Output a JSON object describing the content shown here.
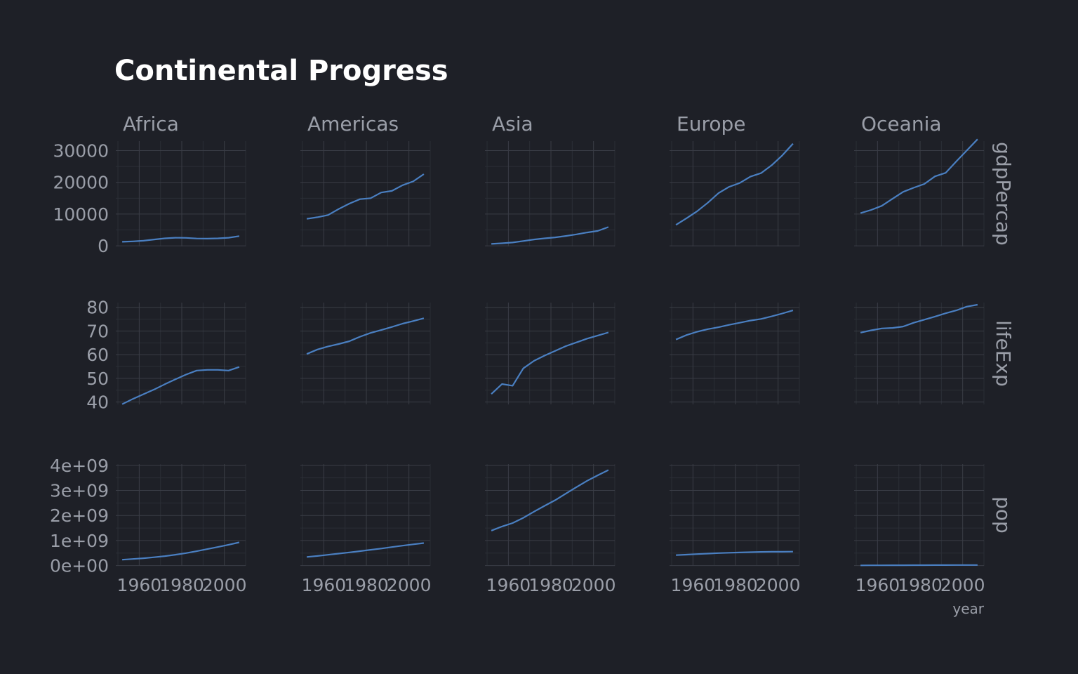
{
  "title": "Continental Progress",
  "colors": {
    "background": "#1e2027",
    "line": "#4a7fc1",
    "grid_major": "#3a3d46",
    "grid_minor": "#2b2e36",
    "text": "#9a9ea8",
    "title": "#ffffff"
  },
  "chart_data": {
    "type": "line",
    "facets": "grid",
    "xlabel": "year",
    "x": [
      1952,
      1957,
      1962,
      1967,
      1972,
      1977,
      1982,
      1987,
      1992,
      1997,
      2002,
      2007
    ],
    "xlim": [
      1949,
      2010
    ],
    "x_ticks": [
      1960,
      1980,
      2000
    ],
    "x_tick_labels": [
      "1960",
      "1980",
      "2000"
    ],
    "columns": [
      "Africa",
      "Americas",
      "Asia",
      "Europe",
      "Oceania"
    ],
    "rows": [
      {
        "name": "gdpPercap",
        "ylim": [
          -200,
          33000
        ],
        "y_ticks": [
          0,
          10000,
          20000,
          30000
        ],
        "y_tick_labels": [
          "0",
          "10000",
          "20000",
          "30000"
        ],
        "series": [
          {
            "column": "Africa",
            "values": [
              1250,
              1390,
              1600,
              2000,
              2350,
              2550,
              2500,
              2300,
              2250,
              2350,
              2550,
              3050
            ]
          },
          {
            "column": "Americas",
            "values": [
              8500,
              9000,
              9700,
              11600,
              13300,
              14700,
              15000,
              16800,
              17300,
              19100,
              20300,
              22600
            ]
          },
          {
            "column": "Asia",
            "values": [
              600,
              800,
              1050,
              1500,
              2000,
              2350,
              2650,
              3100,
              3600,
              4200,
              4700,
              5900
            ]
          },
          {
            "column": "Europe",
            "values": [
              6600,
              8700,
              10900,
              13600,
              16600,
              18600,
              19800,
              21800,
              22900,
              25400,
              28500,
              32200
            ]
          },
          {
            "column": "Oceania",
            "values": [
              10300,
              11300,
              12600,
              14800,
              17000,
              18300,
              19500,
              21900,
              23000,
              26600,
              30100,
              33600
            ]
          }
        ]
      },
      {
        "name": "lifeExp",
        "ylim": [
          39,
          82
        ],
        "y_ticks": [
          40,
          50,
          60,
          70,
          80
        ],
        "y_tick_labels": [
          "40",
          "50",
          "60",
          "70",
          "80"
        ],
        "series": [
          {
            "column": "Africa",
            "values": [
              39.1,
              41.3,
              43.3,
              45.3,
              47.5,
              49.6,
              51.6,
              53.3,
              53.6,
              53.6,
              53.3,
              54.8
            ]
          },
          {
            "column": "Americas",
            "values": [
              60.3,
              62.2,
              63.5,
              64.5,
              65.7,
              67.6,
              69.2,
              70.4,
              71.7,
              73.1,
              74.2,
              75.4
            ]
          },
          {
            "column": "Asia",
            "values": [
              43.4,
              47.6,
              46.9,
              54.2,
              57.4,
              59.6,
              61.6,
              63.6,
              65.2,
              66.8,
              68.1,
              69.4
            ]
          },
          {
            "column": "Europe",
            "values": [
              66.4,
              68.3,
              69.7,
              70.8,
              71.6,
              72.6,
              73.5,
              74.4,
              75.1,
              76.2,
              77.4,
              78.7
            ]
          },
          {
            "column": "Oceania",
            "values": [
              69.3,
              70.3,
              71.1,
              71.3,
              71.9,
              73.5,
              74.8,
              76.1,
              77.5,
              78.7,
              80.3,
              81.1
            ]
          }
        ]
      },
      {
        "name": "pop",
        "ylim": [
          -10000000,
          4050000000
        ],
        "y_ticks": [
          0,
          1000000000,
          2000000000,
          3000000000,
          4000000000
        ],
        "y_tick_labels": [
          "0e+00",
          "1e+09",
          "2e+09",
          "3e+09",
          "4e+09"
        ],
        "series": [
          {
            "column": "Africa",
            "values": [
              237000000,
              265000000,
              296000000,
              335000000,
              379000000,
              434000000,
              499000000,
              575000000,
              660000000,
              744000000,
              834000000,
              929000000
            ]
          },
          {
            "column": "Americas",
            "values": [
              345000000,
              386000000,
              433000000,
              481000000,
              529000000,
              578000000,
              630000000,
              682000000,
              740000000,
              797000000,
              850000000,
              899000000
            ]
          },
          {
            "column": "Asia",
            "values": [
              1395000000,
              1562000000,
              1697000000,
              1905000000,
              2151000000,
              2384000000,
              2611000000,
              2871000000,
              3133000000,
              3383000000,
              3601000000,
              3811000000
            ]
          },
          {
            "column": "Europe",
            "values": [
              418000000,
              438000000,
              461000000,
              481000000,
              500000000,
              514000000,
              524000000,
              535000000,
              548000000,
              552000000,
              553000000,
              559000000
            ]
          },
          {
            "column": "Oceania",
            "values": [
              10700000,
              11900000,
              13000000,
              14300000,
              16100000,
              17200000,
              18400000,
              19600000,
              21000000,
              22400000,
              23500000,
              24500000
            ]
          }
        ]
      }
    ]
  }
}
